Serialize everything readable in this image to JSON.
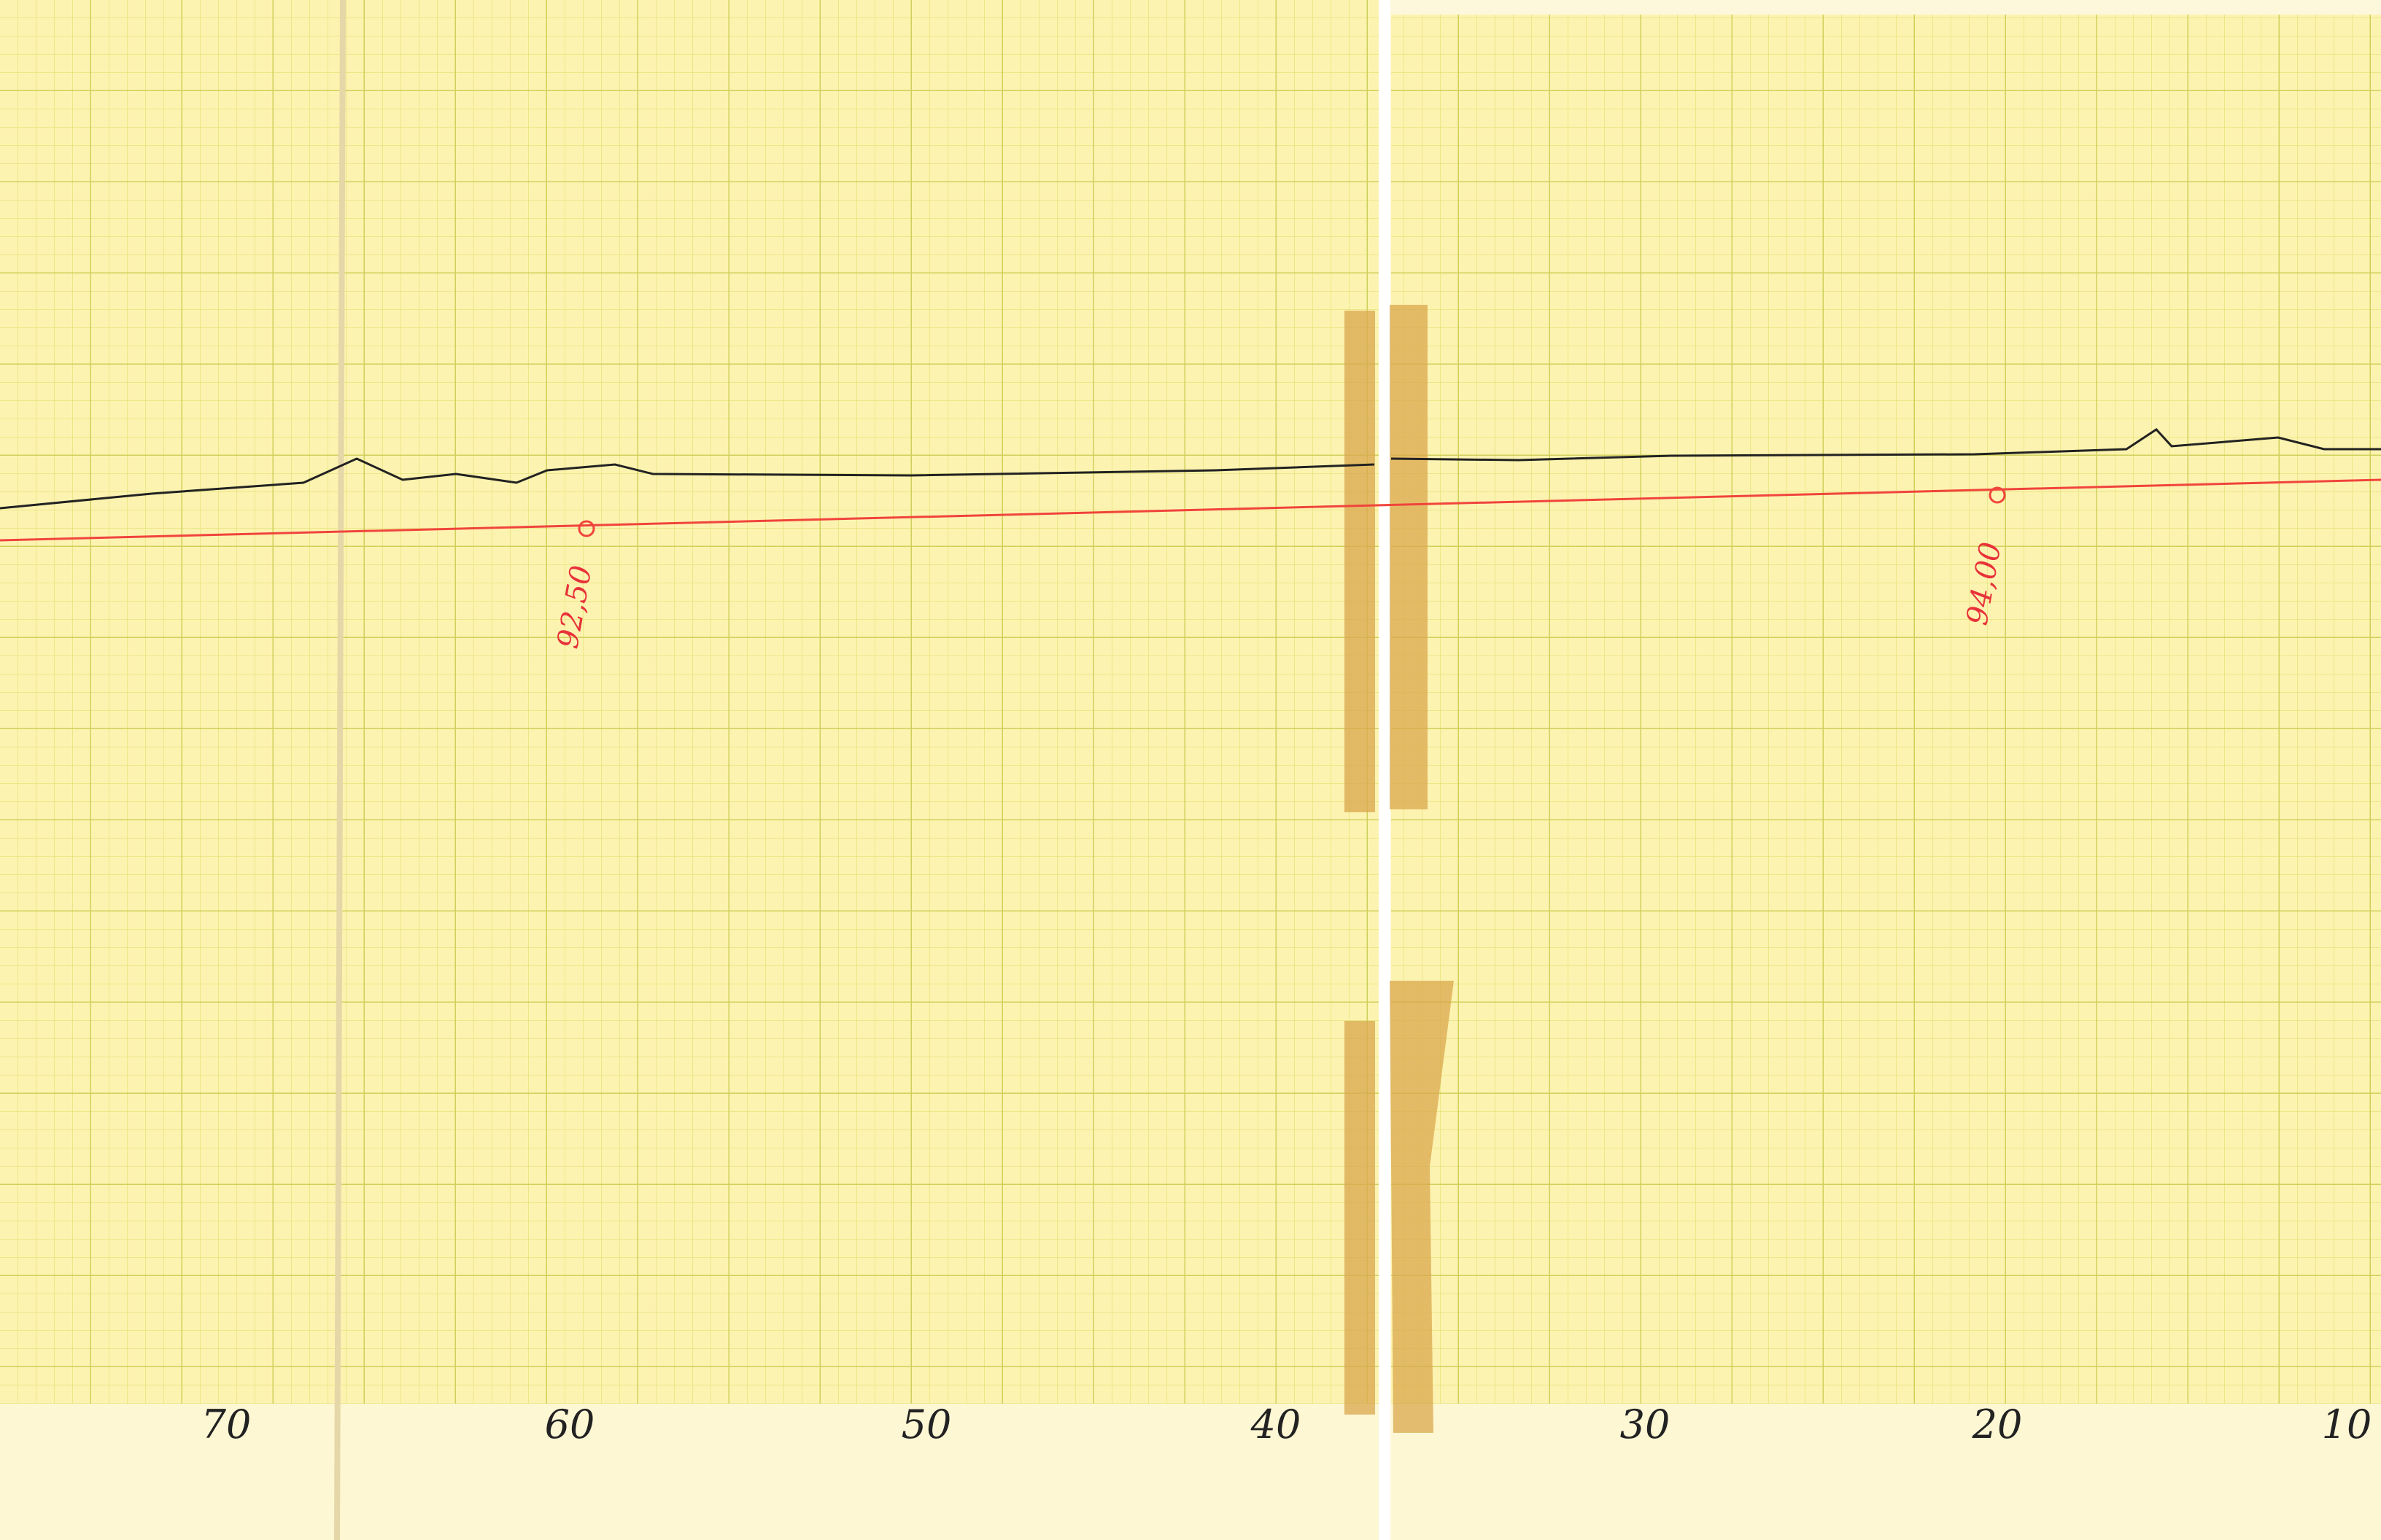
{
  "axis_labels": [
    "70",
    "60",
    "50",
    "40",
    "30",
    "20",
    "10"
  ],
  "annotations": [
    "92,50",
    "94,00"
  ]
}
